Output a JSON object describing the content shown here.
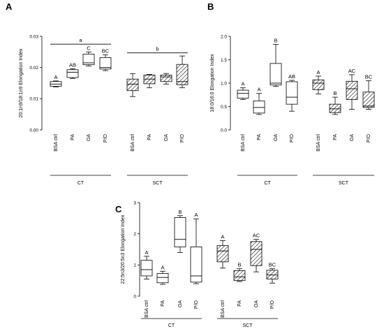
{
  "chart_data": [
    {
      "type": "box",
      "panel": "A",
      "ylabel": "20:1n9/18:1n9 Elongation Index",
      "ylim": [
        0,
        0.03
      ],
      "yticks": [
        "0.00",
        "0.01",
        "0.02",
        "0.03"
      ],
      "yticks_values": [
        0,
        0.01,
        0.02,
        0.03
      ],
      "categories": [
        "BSA ctrl",
        "PA",
        "OA",
        "P/O",
        "BSA ctrl",
        "PA",
        "OA",
        "P/O"
      ],
      "groups": [
        {
          "label": "CT",
          "from": 0,
          "to": 3
        },
        {
          "label": "SCT",
          "from": 4,
          "to": 7
        }
      ],
      "hatched": [
        false,
        false,
        false,
        false,
        true,
        true,
        true,
        true
      ],
      "boxes": [
        {
          "min": 0.0138,
          "q1": 0.014,
          "median": 0.0147,
          "q3": 0.0155,
          "max": 0.0157,
          "label": "A"
        },
        {
          "min": 0.0165,
          "q1": 0.0168,
          "median": 0.0185,
          "q3": 0.0193,
          "max": 0.0196,
          "label": "AB"
        },
        {
          "min": 0.0205,
          "q1": 0.0209,
          "median": 0.0215,
          "q3": 0.0243,
          "max": 0.025,
          "label": "C"
        },
        {
          "min": 0.019,
          "q1": 0.0195,
          "median": 0.02,
          "q3": 0.0232,
          "max": 0.0241,
          "label": "BC"
        },
        {
          "min": 0.0107,
          "q1": 0.0126,
          "median": 0.0147,
          "q3": 0.0163,
          "max": 0.018,
          "label": ""
        },
        {
          "min": 0.0135,
          "q1": 0.0148,
          "median": 0.0163,
          "q3": 0.0176,
          "max": 0.0178,
          "label": ""
        },
        {
          "min": 0.0147,
          "q1": 0.0155,
          "median": 0.017,
          "q3": 0.0176,
          "max": 0.0181,
          "label": ""
        },
        {
          "min": 0.0135,
          "q1": 0.0145,
          "median": 0.0155,
          "q3": 0.021,
          "max": 0.0237,
          "label": ""
        }
      ],
      "brackets": [
        {
          "from": 0,
          "to": 3,
          "y": 0.0275,
          "label": "a"
        },
        {
          "from": 4,
          "to": 7,
          "y": 0.0247,
          "label": "b"
        }
      ]
    },
    {
      "type": "box",
      "panel": "B",
      "ylabel": "18:0/16:0 Elongation Index",
      "ylim": [
        0,
        2.0
      ],
      "yticks": [
        "0.0",
        "0.5",
        "1.0",
        "1.5",
        "2.0"
      ],
      "yticks_values": [
        0,
        0.5,
        1.0,
        1.5,
        2.0
      ],
      "categories": [
        "BSA ctrl",
        "PA",
        "OA",
        "P/O",
        "BSA ctrl",
        "PA",
        "OA",
        "P/O"
      ],
      "groups": [
        {
          "label": "CT",
          "from": 0,
          "to": 3
        },
        {
          "label": "SCT",
          "from": 4,
          "to": 7
        }
      ],
      "hatched": [
        false,
        false,
        false,
        false,
        true,
        true,
        true,
        true
      ],
      "boxes": [
        {
          "min": 0.65,
          "q1": 0.68,
          "median": 0.78,
          "q3": 0.85,
          "max": 0.9,
          "label": "A"
        },
        {
          "min": 0.33,
          "q1": 0.36,
          "median": 0.48,
          "q3": 0.62,
          "max": 0.78,
          "label": "A"
        },
        {
          "min": 0.93,
          "q1": 0.96,
          "median": 1.0,
          "q3": 1.42,
          "max": 1.83,
          "label": "B"
        },
        {
          "min": 0.4,
          "q1": 0.55,
          "median": 0.7,
          "q3": 1.03,
          "max": 1.06,
          "label": "AB"
        },
        {
          "min": 0.77,
          "q1": 0.86,
          "median": 1.0,
          "q3": 1.07,
          "max": 1.15,
          "label": "A"
        },
        {
          "min": 0.33,
          "q1": 0.37,
          "median": 0.45,
          "q3": 0.55,
          "max": 0.7,
          "label": "B"
        },
        {
          "min": 0.44,
          "q1": 0.65,
          "median": 0.88,
          "q3": 1.04,
          "max": 1.18,
          "label": "AC"
        },
        {
          "min": 0.44,
          "q1": 0.48,
          "median": 0.51,
          "q3": 0.81,
          "max": 1.05,
          "label": "BC"
        }
      ],
      "brackets": []
    },
    {
      "type": "box",
      "panel": "C",
      "ylabel": "22:5n3/20:5n3 Elongation Index",
      "ylim": [
        0,
        3
      ],
      "yticks": [
        "0",
        "1",
        "2",
        "3"
      ],
      "yticks_values": [
        0,
        1,
        2,
        3
      ],
      "categories": [
        "BSA ctrl",
        "PA",
        "OA",
        "P/O",
        "BSA ctrl",
        "PA",
        "OA",
        "P/O"
      ],
      "groups": [
        {
          "label": "CT",
          "from": 0,
          "to": 3
        },
        {
          "label": "SCT",
          "from": 4,
          "to": 7
        }
      ],
      "hatched": [
        false,
        false,
        false,
        false,
        true,
        true,
        true,
        true
      ],
      "boxes": [
        {
          "min": 0.55,
          "q1": 0.65,
          "median": 0.85,
          "q3": 1.15,
          "max": 1.28,
          "label": "A"
        },
        {
          "min": 0.38,
          "q1": 0.43,
          "median": 0.6,
          "q3": 0.73,
          "max": 0.8,
          "label": "A"
        },
        {
          "min": 1.4,
          "q1": 1.58,
          "median": 1.82,
          "q3": 2.52,
          "max": 2.58,
          "label": "B"
        },
        {
          "min": 0.4,
          "q1": 0.45,
          "median": 0.65,
          "q3": 1.58,
          "max": 2.48,
          "label": "A"
        },
        {
          "min": 0.9,
          "q1": 1.1,
          "median": 1.45,
          "q3": 1.62,
          "max": 1.78,
          "label": "A"
        },
        {
          "min": 0.47,
          "q1": 0.5,
          "median": 0.62,
          "q3": 0.82,
          "max": 0.88,
          "label": "B"
        },
        {
          "min": 0.78,
          "q1": 0.98,
          "median": 1.5,
          "q3": 1.75,
          "max": 1.82,
          "label": "AC"
        },
        {
          "min": 0.42,
          "q1": 0.55,
          "median": 0.68,
          "q3": 0.83,
          "max": 0.88,
          "label": "BC"
        }
      ],
      "brackets": []
    }
  ]
}
